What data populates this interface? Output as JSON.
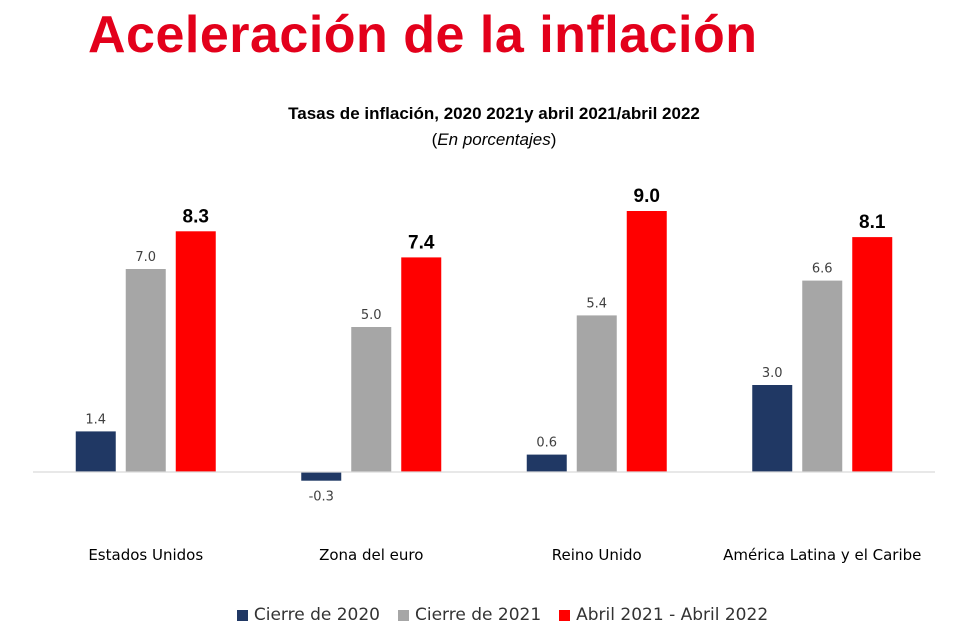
{
  "header": {
    "title": "Aceleración de la inflación"
  },
  "chart_data": {
    "type": "bar",
    "title": "Tasas de inflación, 2020 2021y abril 2021/abril 2022",
    "subtitle": "En porcentajes",
    "categories": [
      "Estados Unidos",
      "Zona del euro",
      "Reino Unido",
      "América Latina y el Caribe"
    ],
    "series": [
      {
        "name": "Cierre de 2020",
        "color": "#203864",
        "values": [
          1.4,
          -0.3,
          0.6,
          3.0
        ],
        "labels": [
          "1.4",
          "-0.3",
          "0.6",
          "3.0"
        ]
      },
      {
        "name": "Cierre de 2021",
        "color": "#a6a6a6",
        "values": [
          7.0,
          5.0,
          5.4,
          6.6
        ],
        "labels": [
          "7.0",
          "5.0",
          "5.4",
          "6.6"
        ]
      },
      {
        "name": "Abril 2021 - Abril 2022",
        "color": "#ff0000",
        "values": [
          8.3,
          7.4,
          9.0,
          8.1
        ],
        "labels": [
          "8.3",
          "7.4",
          "9.0",
          "8.1"
        ]
      }
    ],
    "legend_position": "bottom",
    "grid": false
  },
  "colors": {
    "title": "#e3001b"
  }
}
